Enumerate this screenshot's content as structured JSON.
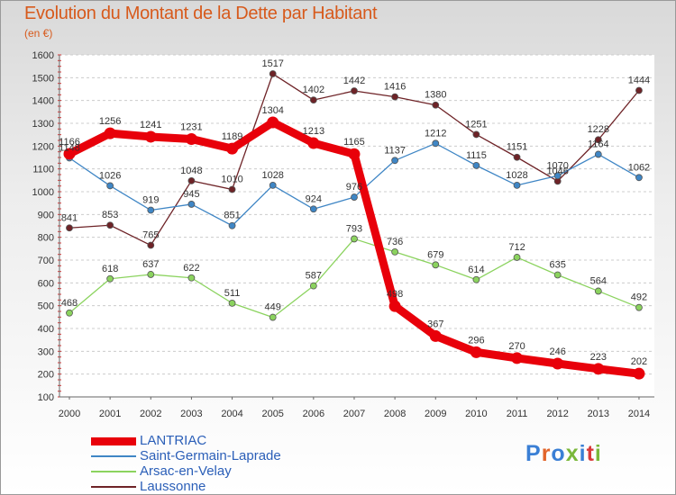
{
  "title": "Evolution du Montant de la Dette par Habitant",
  "subtitle": "(en €)",
  "brand": {
    "text": "Proxiti",
    "letter_colors": [
      "#3a7fd5",
      "#e2642a",
      "#3a7fd5",
      "#7ab83a",
      "#3a7fd5",
      "#d93a3a",
      "#7ab83a"
    ]
  },
  "chart_data": {
    "type": "line",
    "title": "Evolution du Montant de la Dette par Habitant",
    "subtitle": "(en €)",
    "xlabel": "",
    "ylabel": "",
    "x": [
      "2000",
      "2001",
      "2002",
      "2003",
      "2004",
      "2005",
      "2006",
      "2007",
      "2008",
      "2009",
      "2010",
      "2011",
      "2012",
      "2013",
      "2014"
    ],
    "yticks": [
      100,
      200,
      300,
      400,
      500,
      600,
      700,
      800,
      900,
      1000,
      1100,
      1200,
      1300,
      1400,
      1500,
      1600
    ],
    "ylim": [
      100,
      1600
    ],
    "grid": "horizontal dashed",
    "legend_position": "bottom-left",
    "series": [
      {
        "name": "LANTRIAC",
        "color": "#e8000a",
        "values": [
          1166,
          1256,
          1241,
          1231,
          1189,
          1304,
          1213,
          1165,
          498,
          367,
          296,
          270,
          246,
          223,
          202
        ]
      },
      {
        "name": "Saint-Germain-Laprade",
        "color": "#3f86c5",
        "values": [
          1148,
          1026,
          919,
          945,
          851,
          1028,
          924,
          976,
          1137,
          1212,
          1115,
          1028,
          1070,
          1164,
          1062
        ]
      },
      {
        "name": "Arsac-en-Velay",
        "color": "#8bd35e",
        "values": [
          468,
          618,
          637,
          622,
          511,
          449,
          587,
          793,
          736,
          679,
          614,
          712,
          635,
          564,
          492
        ]
      },
      {
        "name": "Laussonne",
        "color": "#6e2327",
        "values": [
          841,
          853,
          765,
          1048,
          1010,
          1517,
          1402,
          1442,
          1416,
          1380,
          1251,
          1151,
          1046,
          1228,
          1444
        ]
      }
    ]
  }
}
